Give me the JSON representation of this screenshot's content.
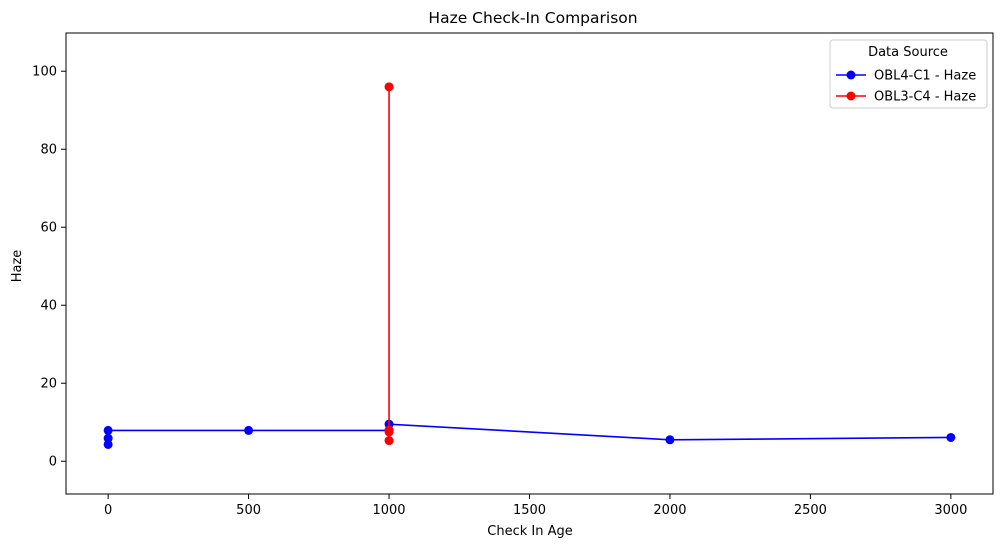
{
  "chart_data": {
    "type": "line",
    "title": "Haze Check-In Comparison",
    "xlabel": "Check In Age",
    "ylabel": "Haze",
    "xlim": [
      -150,
      3150
    ],
    "ylim": [
      -8.4,
      109.8
    ],
    "xticks": [
      0,
      500,
      1000,
      1500,
      2000,
      2500,
      3000
    ],
    "yticks": [
      0,
      20,
      40,
      60,
      80,
      100
    ],
    "grid": false,
    "legend": {
      "title": "Data Source",
      "placement": "top-right"
    },
    "series": [
      {
        "name": "OBL4-C1 - Haze",
        "color": "#0000ff",
        "marker": "circle",
        "x": [
          0,
          0,
          0,
          500,
          1000,
          1000,
          2000,
          3000
        ],
        "y": [
          4.3,
          5.9,
          7.9,
          7.9,
          7.9,
          9.5,
          5.5,
          6.1
        ]
      },
      {
        "name": "OBL3-C4 - Haze",
        "color": "#ff0000",
        "marker": "circle",
        "x": [
          1000,
          1000,
          1000,
          1000
        ],
        "y": [
          5.3,
          7.5,
          8.0,
          96.0
        ]
      }
    ]
  }
}
